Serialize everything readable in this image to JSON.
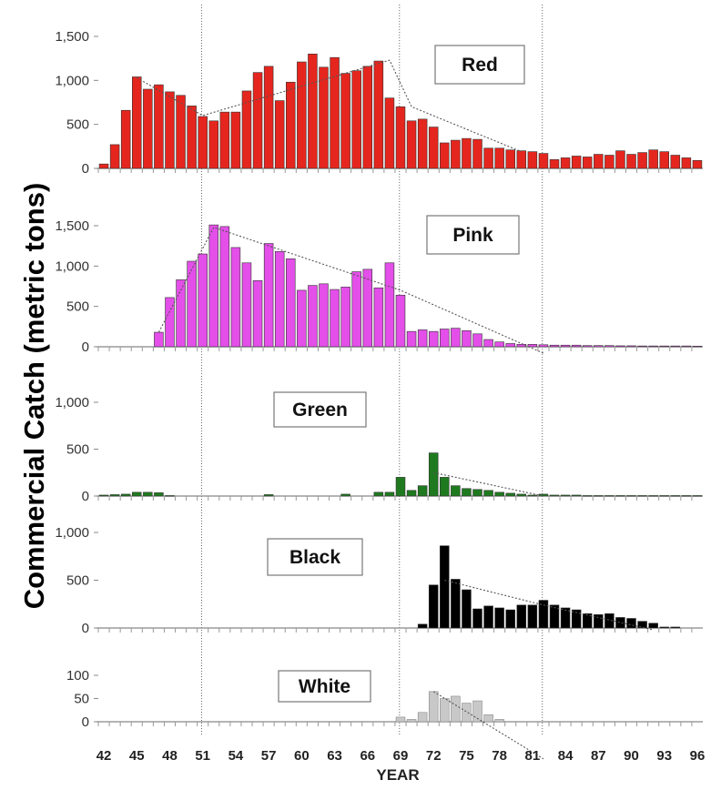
{
  "chart_data": {
    "type": "bar",
    "ylabel": "Commercial Catch (metric tons)",
    "xlabel": "YEAR",
    "x_tick_labels": [
      "42",
      "45",
      "48",
      "51",
      "54",
      "57",
      "60",
      "63",
      "66",
      "69",
      "72",
      "75",
      "78",
      "81",
      "84",
      "87",
      "90",
      "93",
      "96"
    ],
    "x_range": [
      1942,
      1996
    ],
    "reference_year_lines": [
      1951,
      1969,
      1982
    ],
    "series": [
      {
        "name": "Red",
        "color": "#e5261e",
        "ylim": [
          0,
          1500
        ],
        "y_tick_labels": [
          "0",
          "500",
          "1,000",
          "1,500"
        ],
        "y_tick_values": [
          0,
          500,
          1000,
          1500
        ],
        "years": [
          1942,
          1943,
          1944,
          1945,
          1946,
          1947,
          1948,
          1949,
          1950,
          1951,
          1952,
          1953,
          1954,
          1955,
          1956,
          1957,
          1958,
          1959,
          1960,
          1961,
          1962,
          1963,
          1964,
          1965,
          1966,
          1967,
          1968,
          1969,
          1970,
          1971,
          1972,
          1973,
          1974,
          1975,
          1976,
          1977,
          1978,
          1979,
          1980,
          1981,
          1982,
          1983,
          1984,
          1985,
          1986,
          1987,
          1988,
          1989,
          1990,
          1991,
          1992,
          1993,
          1994,
          1995,
          1996
        ],
        "values": [
          50,
          270,
          660,
          1040,
          900,
          950,
          870,
          830,
          710,
          590,
          540,
          640,
          640,
          880,
          1090,
          1160,
          770,
          980,
          1210,
          1300,
          1150,
          1260,
          1080,
          1110,
          1160,
          1220,
          800,
          700,
          540,
          560,
          470,
          290,
          320,
          340,
          330,
          230,
          230,
          210,
          200,
          190,
          170,
          100,
          120,
          140,
          130,
          160,
          150,
          200,
          160,
          180,
          210,
          190,
          150,
          120,
          90
        ]
      },
      {
        "name": "Pink",
        "color": "#e34fe8",
        "ylim": [
          0,
          1500
        ],
        "y_tick_labels": [
          "0",
          "500",
          "1,000",
          "1,500"
        ],
        "y_tick_values": [
          0,
          500,
          1000,
          1500
        ],
        "years": [
          1942,
          1943,
          1944,
          1945,
          1946,
          1947,
          1948,
          1949,
          1950,
          1951,
          1952,
          1953,
          1954,
          1955,
          1956,
          1957,
          1958,
          1959,
          1960,
          1961,
          1962,
          1963,
          1964,
          1965,
          1966,
          1967,
          1968,
          1969,
          1970,
          1971,
          1972,
          1973,
          1974,
          1975,
          1976,
          1977,
          1978,
          1979,
          1980,
          1981,
          1982,
          1983,
          1984,
          1985,
          1986,
          1987,
          1988,
          1989,
          1990,
          1991,
          1992,
          1993,
          1994,
          1995,
          1996
        ],
        "values": [
          0,
          0,
          0,
          0,
          0,
          180,
          610,
          830,
          1060,
          1150,
          1510,
          1490,
          1230,
          1040,
          820,
          1280,
          1180,
          1090,
          700,
          760,
          780,
          710,
          740,
          930,
          960,
          730,
          1040,
          640,
          190,
          210,
          190,
          220,
          230,
          200,
          160,
          90,
          60,
          40,
          30,
          30,
          25,
          20,
          20,
          20,
          15,
          15,
          15,
          12,
          12,
          10,
          10,
          10,
          10,
          10,
          8
        ]
      },
      {
        "name": "Green",
        "color": "#1f7a1f",
        "ylim": [
          0,
          1000
        ],
        "y_tick_labels": [
          "0",
          "500",
          "1,000"
        ],
        "y_tick_values": [
          0,
          500,
          1000
        ],
        "years": [
          1942,
          1943,
          1944,
          1945,
          1946,
          1947,
          1948,
          1949,
          1950,
          1951,
          1952,
          1953,
          1954,
          1955,
          1956,
          1957,
          1958,
          1959,
          1960,
          1961,
          1962,
          1963,
          1964,
          1965,
          1966,
          1967,
          1968,
          1969,
          1970,
          1971,
          1972,
          1973,
          1974,
          1975,
          1976,
          1977,
          1978,
          1979,
          1980,
          1981,
          1982,
          1983,
          1984,
          1985,
          1986,
          1987,
          1988,
          1989,
          1990,
          1991,
          1992,
          1993,
          1994,
          1995,
          1996
        ],
        "values": [
          10,
          15,
          20,
          40,
          40,
          35,
          5,
          0,
          0,
          0,
          0,
          0,
          0,
          0,
          0,
          15,
          0,
          0,
          0,
          0,
          0,
          0,
          20,
          0,
          0,
          40,
          40,
          200,
          60,
          110,
          460,
          200,
          110,
          80,
          70,
          60,
          40,
          30,
          20,
          10,
          20,
          10,
          10,
          10,
          5,
          5,
          5,
          5,
          5,
          5,
          5,
          5,
          5,
          5,
          5
        ]
      },
      {
        "name": "Black",
        "color": "#000000",
        "ylim": [
          0,
          1000
        ],
        "y_tick_labels": [
          "0",
          "500",
          "1,000"
        ],
        "y_tick_values": [
          0,
          500,
          1000
        ],
        "years": [
          1942,
          1943,
          1944,
          1945,
          1946,
          1947,
          1948,
          1949,
          1950,
          1951,
          1952,
          1953,
          1954,
          1955,
          1956,
          1957,
          1958,
          1959,
          1960,
          1961,
          1962,
          1963,
          1964,
          1965,
          1966,
          1967,
          1968,
          1969,
          1970,
          1971,
          1972,
          1973,
          1974,
          1975,
          1976,
          1977,
          1978,
          1979,
          1980,
          1981,
          1982,
          1983,
          1984,
          1985,
          1986,
          1987,
          1988,
          1989,
          1990,
          1991,
          1992,
          1993,
          1994,
          1995,
          1996
        ],
        "values": [
          0,
          0,
          0,
          0,
          0,
          0,
          0,
          0,
          0,
          0,
          0,
          0,
          0,
          0,
          0,
          0,
          0,
          0,
          0,
          0,
          0,
          0,
          0,
          0,
          0,
          0,
          0,
          0,
          0,
          40,
          450,
          860,
          510,
          400,
          200,
          230,
          210,
          190,
          240,
          240,
          290,
          240,
          210,
          190,
          150,
          140,
          150,
          110,
          100,
          70,
          50,
          10,
          10,
          0,
          0
        ]
      },
      {
        "name": "White",
        "color": "#c8c8c8",
        "ylim": [
          0,
          150
        ],
        "y_tick_labels": [
          "0",
          "50",
          "100"
        ],
        "y_tick_values": [
          0,
          50,
          100
        ],
        "years": [
          1942,
          1943,
          1944,
          1945,
          1946,
          1947,
          1948,
          1949,
          1950,
          1951,
          1952,
          1953,
          1954,
          1955,
          1956,
          1957,
          1958,
          1959,
          1960,
          1961,
          1962,
          1963,
          1964,
          1965,
          1966,
          1967,
          1968,
          1969,
          1970,
          1971,
          1972,
          1973,
          1974,
          1975,
          1976,
          1977,
          1978,
          1979,
          1980,
          1981,
          1982,
          1983,
          1984,
          1985,
          1986,
          1987,
          1988,
          1989,
          1990,
          1991,
          1992,
          1993,
          1994,
          1995,
          1996
        ],
        "values": [
          0,
          0,
          0,
          0,
          0,
          0,
          0,
          0,
          0,
          0,
          0,
          0,
          0,
          0,
          0,
          0,
          0,
          0,
          0,
          0,
          0,
          0,
          0,
          0,
          0,
          0,
          0,
          10,
          5,
          20,
          65,
          50,
          55,
          40,
          45,
          15,
          5,
          0,
          0,
          0,
          0,
          0,
          0,
          0,
          0,
          0,
          0,
          0,
          0,
          0,
          0,
          0,
          0,
          0,
          0
        ]
      }
    ],
    "trend_lines": [
      {
        "panel": "Red",
        "points": [
          [
            1945,
            1030
          ],
          [
            1951,
            600
          ],
          [
            1968,
            1230
          ],
          [
            1970,
            700
          ],
          [
            1980,
            190
          ]
        ]
      },
      {
        "panel": "Pink",
        "points": [
          [
            1947,
            180
          ],
          [
            1952,
            1480
          ],
          [
            1969,
            700
          ],
          [
            1982,
            -80
          ]
        ]
      },
      {
        "panel": "Green",
        "points": [
          [
            1972,
            250
          ],
          [
            1982,
            0
          ]
        ]
      },
      {
        "panel": "Black",
        "points": [
          [
            1973,
            500
          ],
          [
            1982,
            240
          ],
          [
            1992,
            -20
          ]
        ]
      },
      {
        "panel": "White",
        "points": [
          [
            1972,
            65
          ],
          [
            1982,
            -80
          ]
        ]
      }
    ]
  }
}
